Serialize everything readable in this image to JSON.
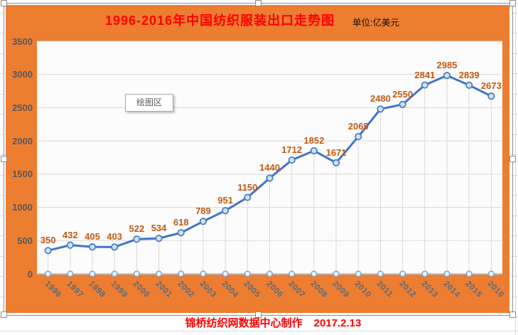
{
  "header": {
    "title": "1996-2016年中国纺织服装出口走势图",
    "unit_label": "单位:亿美元"
  },
  "plot_area_tooltip": "绘图区",
  "footer": {
    "credit": "锦桥纺织网数据中心制作",
    "date": "2017.2.13"
  },
  "colors": {
    "chart_background": "#ed7d31",
    "title_text": "#ff0000",
    "footer_text": "#ff0000",
    "line": "#4274cc",
    "marker_fill": "#cfe2f4",
    "marker_border": "#4a80bd",
    "zero_marker_fill": "#eef5fc",
    "zero_marker_border": "#7aa6d2",
    "value_label": "#c05a11",
    "ytick_label": "#595959",
    "xtick_label": "#5a6b7b",
    "gridline": "#d9d9d9",
    "axis_line": "#b7c9de"
  },
  "chart_data": {
    "type": "line",
    "title": "1996-2016年中国纺织服装出口走势图",
    "unit": "亿美元",
    "categories": [
      "1996",
      "1997",
      "1998",
      "1999",
      "2000",
      "2001",
      "2002",
      "2003",
      "2004",
      "2005",
      "2006",
      "2007",
      "2008",
      "2009",
      "2010",
      "2011",
      "2012",
      "2013",
      "2014",
      "2015",
      "2016"
    ],
    "values": [
      350,
      432,
      405,
      403,
      522,
      534,
      618,
      789,
      951,
      1150,
      1440,
      1712,
      1852,
      1671,
      2065,
      2480,
      2550,
      2841,
      2985,
      2839,
      2673
    ],
    "ylim": [
      0,
      3500
    ],
    "yticks": [
      0,
      500,
      1000,
      1500,
      2000,
      2500,
      3000,
      3500
    ],
    "grid": "horizontal",
    "drop_lines": true,
    "markers": true,
    "zero_axis_markers": true,
    "data_labels": "above",
    "legend": "none",
    "xlabel": "",
    "ylabel": ""
  }
}
